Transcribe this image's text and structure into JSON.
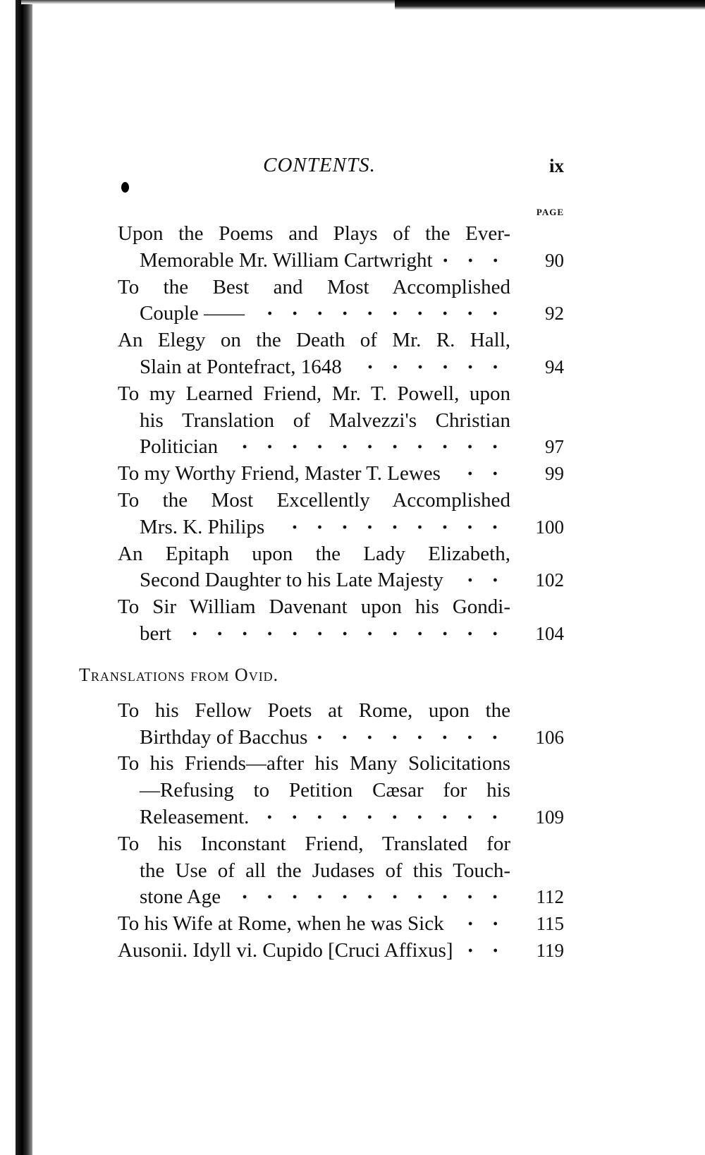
{
  "header": {
    "title": "CONTENTS.",
    "folio": "ix",
    "page_label": "PAGE"
  },
  "groups": [
    {
      "section": "",
      "entries": [
        {
          "lines": [
            "Upon the Poems and Plays of the Ever-",
            "Memorable Mr. William Cartwright"
          ],
          "page": "90"
        },
        {
          "lines": [
            "To the Best and Most Accomplished",
            "Couple ——"
          ],
          "page": "92"
        },
        {
          "lines": [
            "An Elegy on the Death of Mr. R. Hall,",
            "Slain at Pontefract, 1648"
          ],
          "page": "94"
        },
        {
          "lines": [
            "To my Learned Friend, Mr. T. Powell, upon",
            "his Translation of Malvezzi's Christian",
            "Politician"
          ],
          "page": "97"
        },
        {
          "lines": [
            "To my Worthy Friend, Master T. Lewes"
          ],
          "page": "99"
        },
        {
          "lines": [
            "To the Most Excellently Accomplished",
            "Mrs. K. Philips"
          ],
          "page": "100"
        },
        {
          "lines": [
            "An Epitaph upon the Lady Elizabeth,",
            "Second Daughter to his Late Majesty"
          ],
          "page": "102"
        },
        {
          "lines": [
            "To Sir William Davenant upon his Gondi-",
            "bert"
          ],
          "page": "104"
        }
      ]
    },
    {
      "section": "Translations from Ovid.",
      "entries": [
        {
          "lines": [
            "To his Fellow Poets at Rome, upon the",
            "Birthday of Bacchus"
          ],
          "page": "106"
        },
        {
          "lines": [
            "To his Friends—after his Many Solicitations",
            "—Refusing to Petition Cæsar for his",
            "Releasement."
          ],
          "page": "109"
        },
        {
          "lines": [
            "To his Inconstant Friend, Translated for",
            "the Use of all the Judases of this Touch-",
            "stone Age"
          ],
          "page": "112"
        },
        {
          "lines": [
            "To his Wife at Rome, when he was Sick"
          ],
          "page": "115"
        },
        {
          "lines": [
            "Ausonii. Idyll vi. Cupido [Cruci Affixus]"
          ],
          "page": "119"
        }
      ]
    }
  ]
}
